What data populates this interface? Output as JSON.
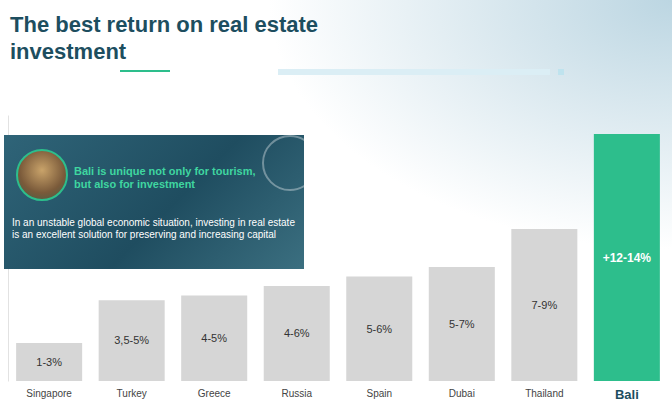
{
  "chart_data": {
    "type": "bar",
    "title": "The best return on real estate investment",
    "annotations": [
      "Bali is unique not only for tourism, but also for investment",
      "In an unstable global economic situation, investing in real estate is an excellent solution for preserving and increasing capital"
    ],
    "categories": [
      "Singapore",
      "Turkey",
      "Greece",
      "Russia",
      "Spain",
      "Dubai",
      "Thailand",
      "Bali"
    ],
    "values": [
      2,
      4.25,
      4.5,
      5,
      5.5,
      6,
      8,
      13
    ],
    "value_labels": [
      "1-3%",
      "3,5-5%",
      "4-5%",
      "4-6%",
      "5-6%",
      "5-7%",
      "7-9%",
      "+12-14%"
    ],
    "colors": [
      "#d6d6d6",
      "#d6d6d6",
      "#d6d6d6",
      "#d6d6d6",
      "#d6d6d6",
      "#d6d6d6",
      "#d6d6d6",
      "#2dbe8c"
    ],
    "ylim": [
      0,
      14
    ],
    "yticks": [],
    "tick_labels": "x",
    "data_labels": true,
    "grid": false
  }
}
